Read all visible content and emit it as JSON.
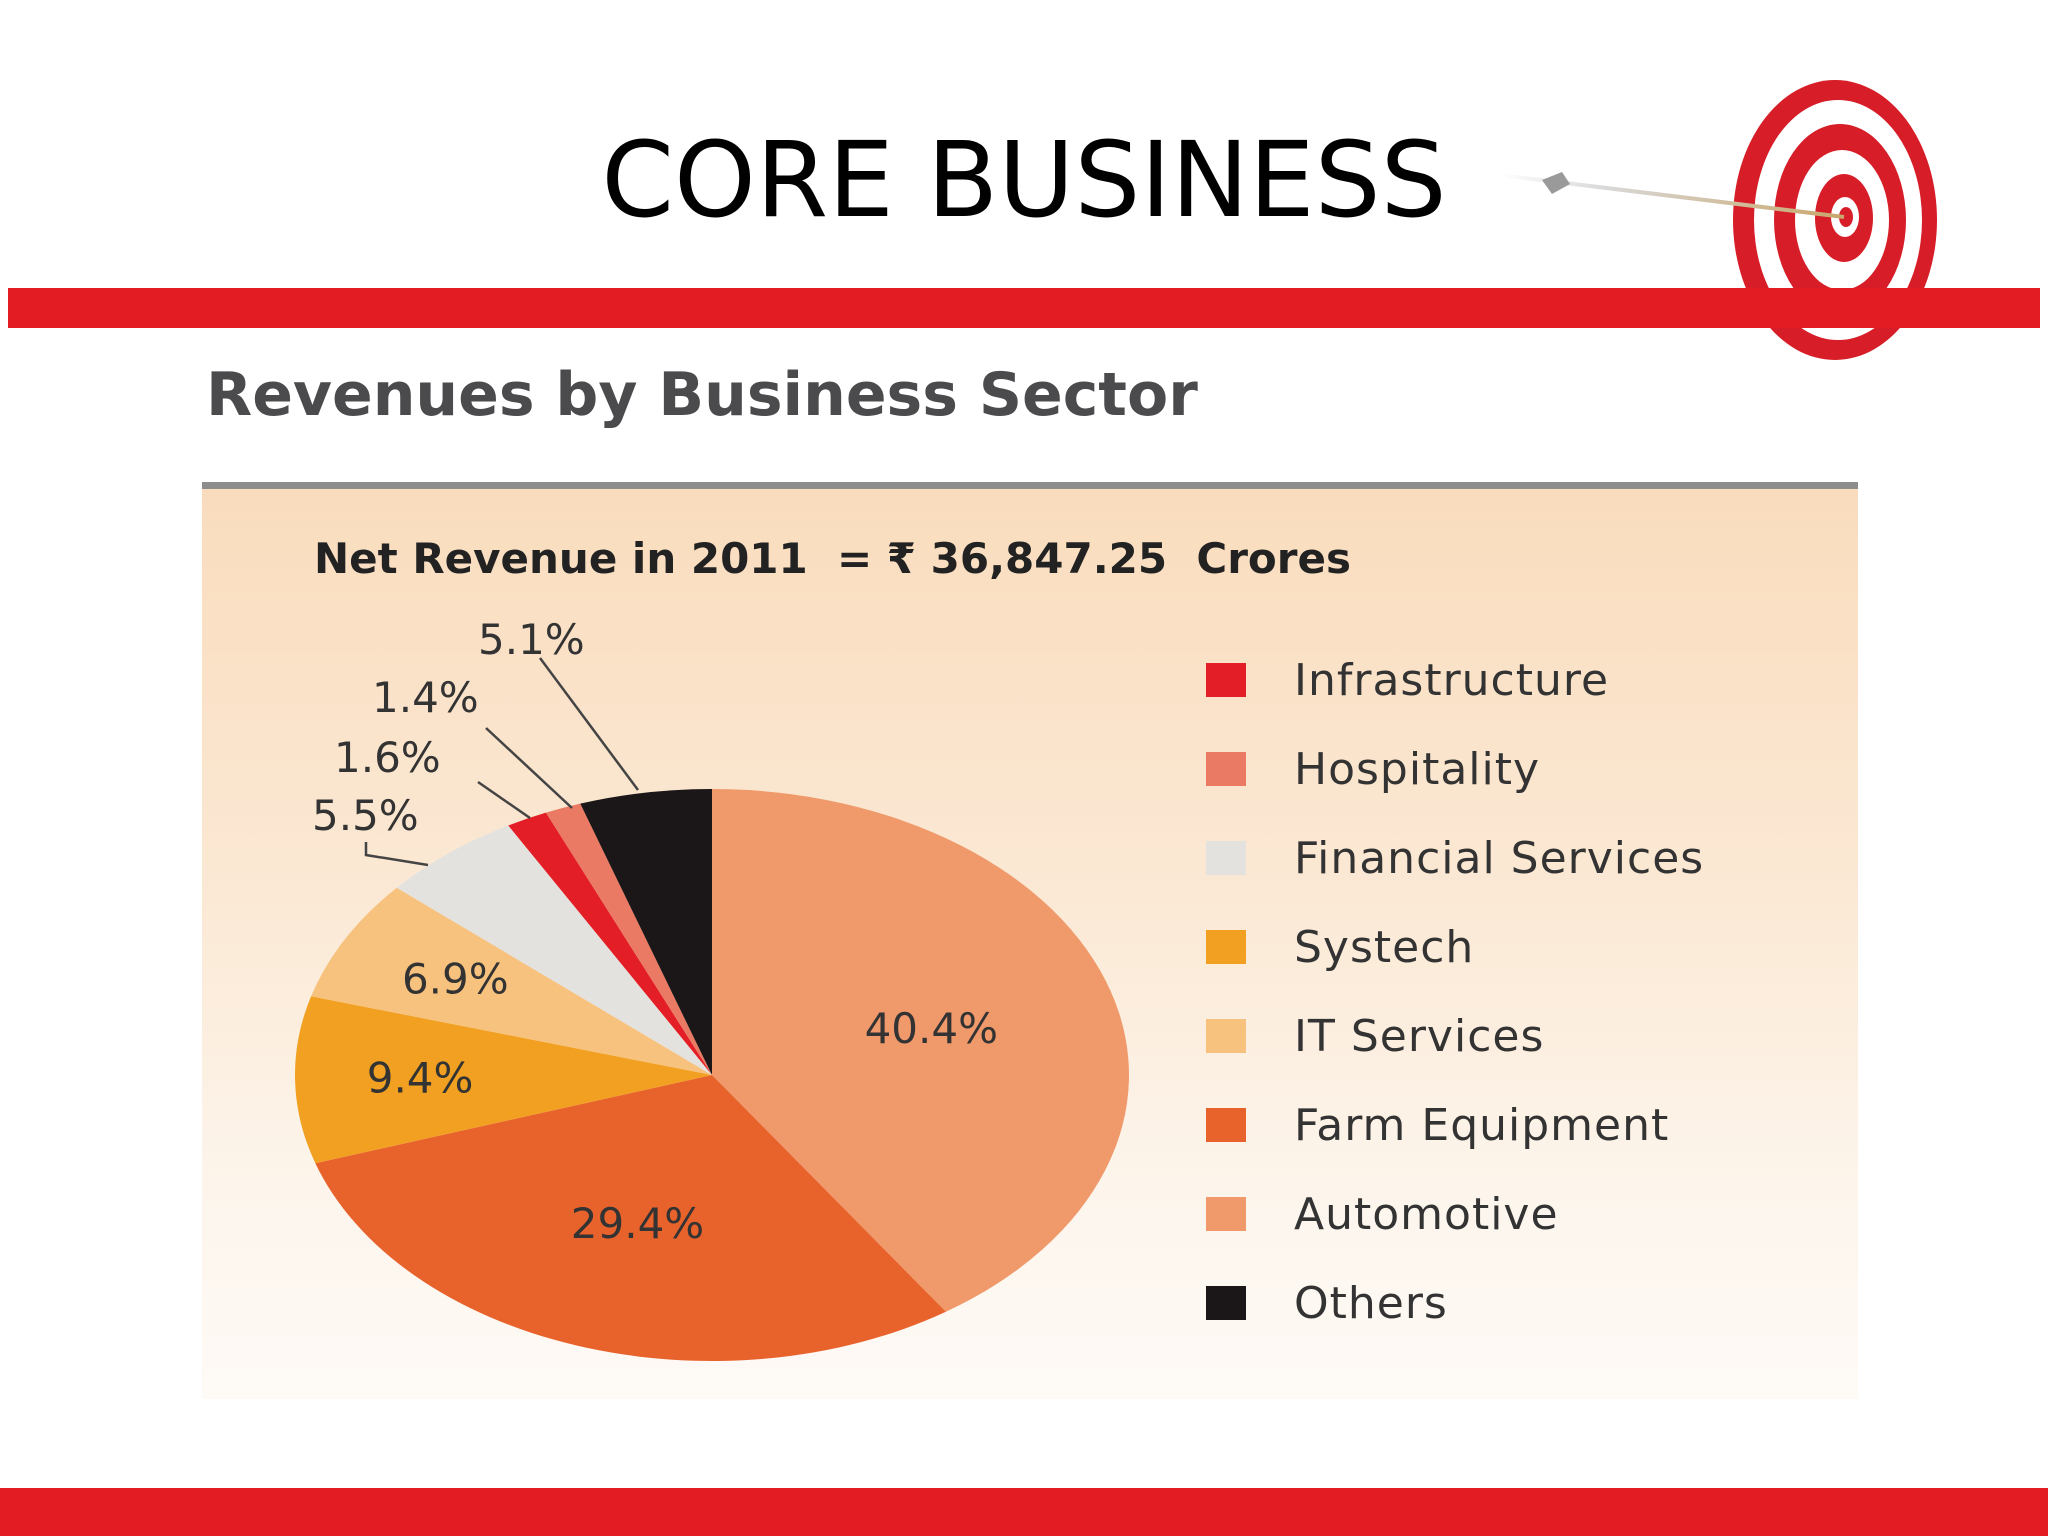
{
  "slide": {
    "title": "CORE BUSINESS"
  },
  "chart_heading": "Revenues by Business Sector",
  "net_revenue": "Net Revenue in 2011  = ₹ 36,847.25  Crores",
  "colors": {
    "accent_red": "#e31b23"
  },
  "chart_data": {
    "type": "pie",
    "title": "Revenues by Business Sector",
    "subtitle": "Net Revenue in 2011  = ₹ 36,847.25  Crores",
    "unit": "%",
    "legend_position": "right",
    "slices": [
      {
        "name": "Automotive",
        "value": 40.4,
        "label": "40.4%",
        "color": "#f0996a"
      },
      {
        "name": "Farm Equipment",
        "value": 29.4,
        "label": "29.4%",
        "color": "#e8622c"
      },
      {
        "name": "Systech",
        "value": 9.4,
        "label": "9.4%",
        "color": "#f1a021"
      },
      {
        "name": "IT Services",
        "value": 6.9,
        "label": "6.9%",
        "color": "#f7c27e"
      },
      {
        "name": "Financial Services",
        "value": 5.5,
        "label": "5.5%",
        "color": "#e3e2df"
      },
      {
        "name": "Infrastructure",
        "value": 1.6,
        "label": "1.6%",
        "color": "#e31e26"
      },
      {
        "name": "Hospitality",
        "value": 1.4,
        "label": "1.4%",
        "color": "#ea7a64"
      },
      {
        "name": "Others",
        "value": 5.1,
        "label": "5.1%",
        "color": "#1b1718"
      }
    ],
    "legend": [
      {
        "label": "Infrastructure",
        "color": "#e31e26"
      },
      {
        "label": "Hospitality",
        "color": "#ea7a64"
      },
      {
        "label": "Financial Services",
        "color": "#e3e2df"
      },
      {
        "label": "Systech",
        "color": "#f1a021"
      },
      {
        "label": "IT Services",
        "color": "#f7c27e"
      },
      {
        "label": "Farm Equipment",
        "color": "#e8622c"
      },
      {
        "label": "Automotive",
        "color": "#f0996a"
      },
      {
        "label": "Others",
        "color": "#1b1718"
      }
    ]
  }
}
